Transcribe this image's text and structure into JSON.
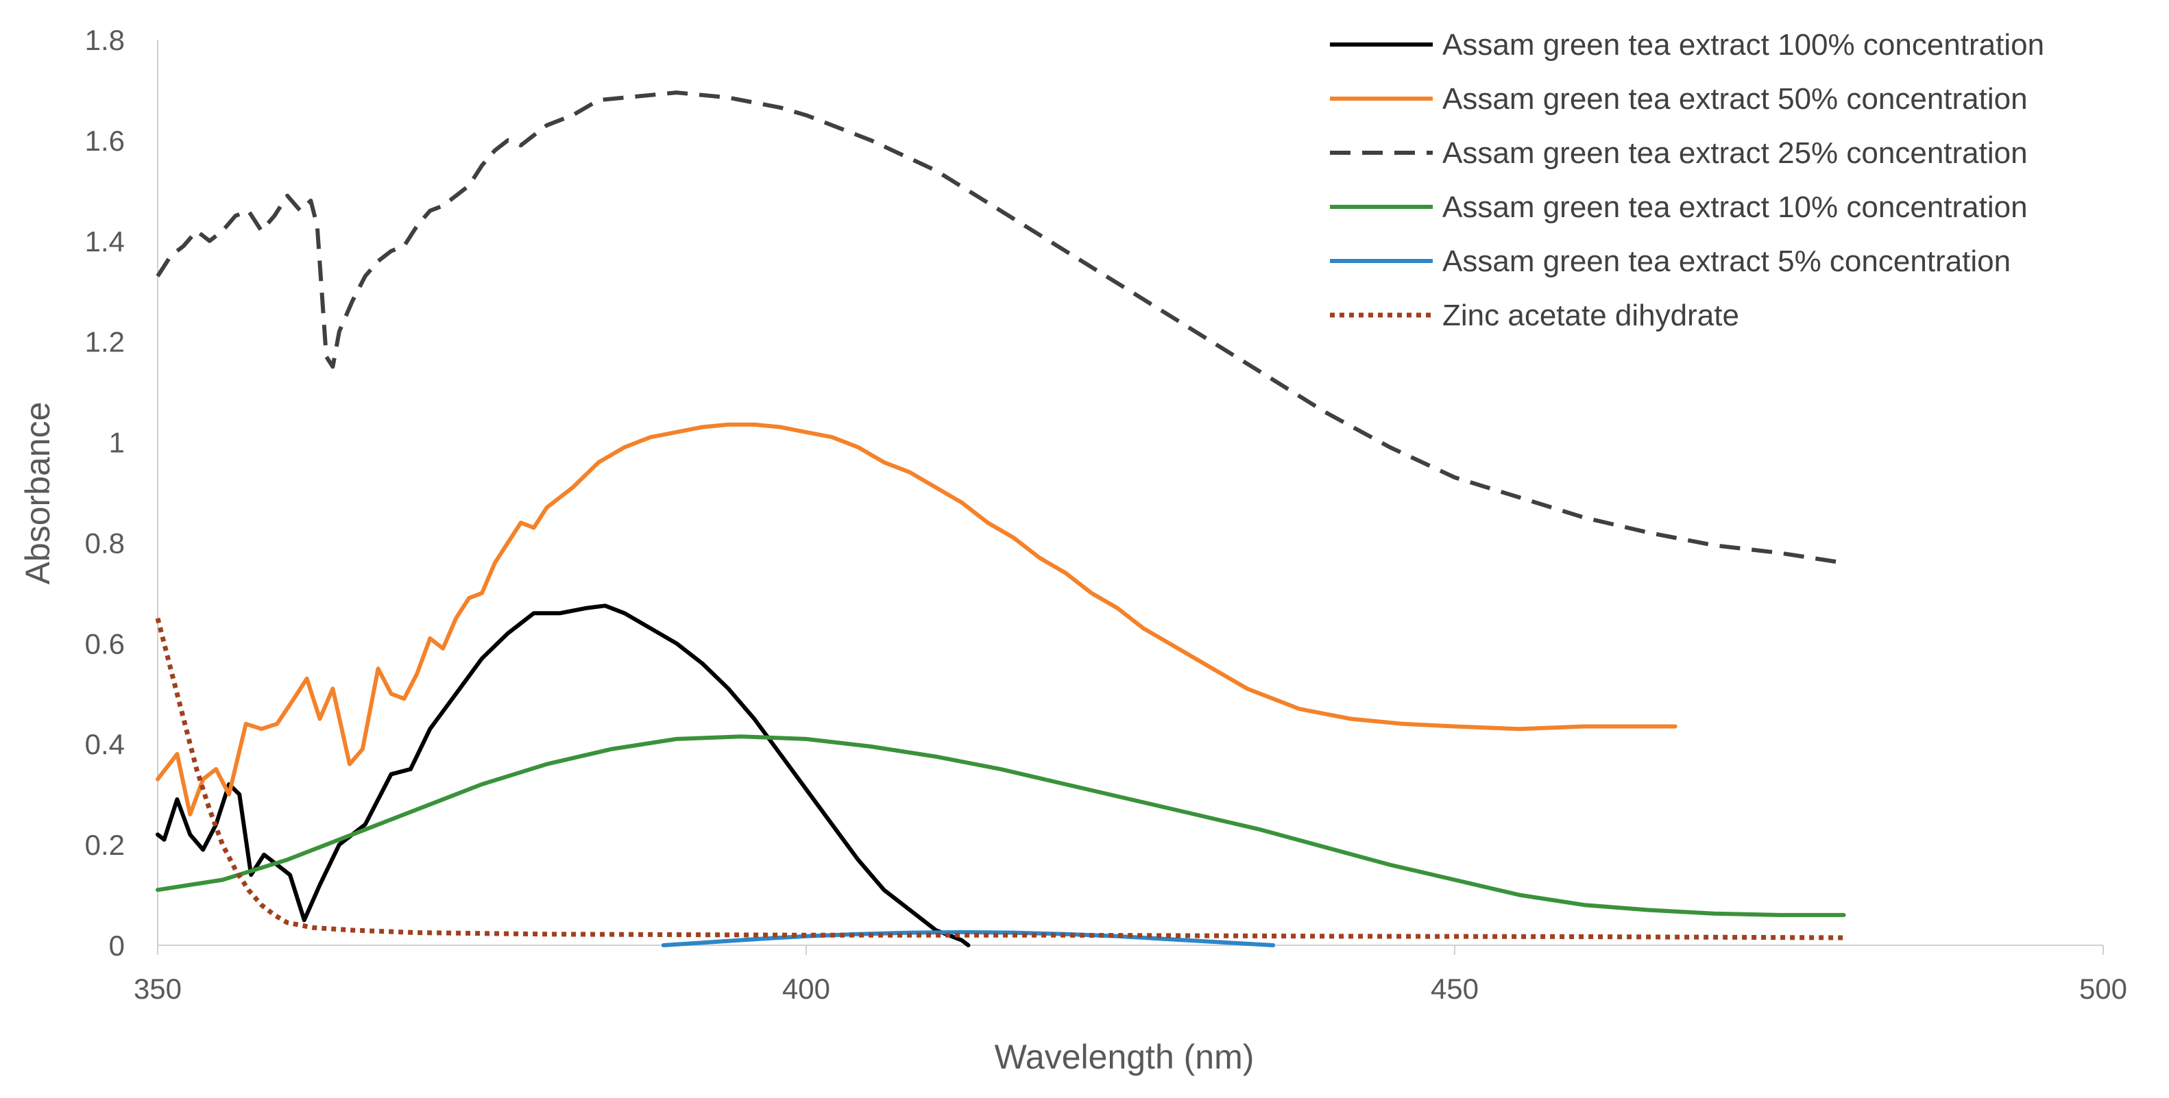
{
  "chart_data": {
    "type": "line",
    "title": "",
    "xlabel": "Wavelength (nm)",
    "ylabel": "Absorbance",
    "xlim": [
      350,
      500
    ],
    "ylim": [
      0,
      1.8
    ],
    "xticks": [
      350,
      400,
      450,
      500
    ],
    "xtick_labels": [
      "350",
      "400",
      "450",
      "500"
    ],
    "yticks": [
      0,
      0.2,
      0.4,
      0.6,
      0.8,
      1,
      1.2,
      1.4,
      1.6,
      1.8
    ],
    "ytick_labels": [
      "0",
      "0.2",
      "0.4",
      "0.6",
      "0.8",
      "1",
      "1.2",
      "1.4",
      "1.6",
      "1.8"
    ],
    "legend_position": "top-right",
    "series": [
      {
        "name": "Assam green tea extract 100% concentration",
        "color": "#000000",
        "style": "solid",
        "points": [
          [
            350,
            0.22
          ],
          [
            350.5,
            0.21
          ],
          [
            351.5,
            0.29
          ],
          [
            352.5,
            0.22
          ],
          [
            353.5,
            0.19
          ],
          [
            354.5,
            0.24
          ],
          [
            355.5,
            0.32
          ],
          [
            356.3,
            0.3
          ],
          [
            357.2,
            0.14
          ],
          [
            358.2,
            0.18
          ],
          [
            359.2,
            0.16
          ],
          [
            360.2,
            0.14
          ],
          [
            361.3,
            0.05
          ],
          [
            362.5,
            0.12
          ],
          [
            364,
            0.2
          ],
          [
            366,
            0.24
          ],
          [
            368,
            0.34
          ],
          [
            369.5,
            0.35
          ],
          [
            371,
            0.43
          ],
          [
            373,
            0.5
          ],
          [
            375,
            0.57
          ],
          [
            377,
            0.62
          ],
          [
            379,
            0.66
          ],
          [
            381,
            0.66
          ],
          [
            383,
            0.67
          ],
          [
            384.5,
            0.675
          ],
          [
            386,
            0.66
          ],
          [
            388,
            0.63
          ],
          [
            390,
            0.6
          ],
          [
            392,
            0.56
          ],
          [
            394,
            0.51
          ],
          [
            396,
            0.45
          ],
          [
            398,
            0.38
          ],
          [
            400,
            0.31
          ],
          [
            402,
            0.24
          ],
          [
            404,
            0.17
          ],
          [
            406,
            0.11
          ],
          [
            408,
            0.07
          ],
          [
            410,
            0.03
          ],
          [
            412,
            0.01
          ],
          [
            412.5,
            0.0
          ]
        ]
      },
      {
        "name": "Assam green tea extract 50% concentration",
        "color": "#F4822A",
        "style": "solid",
        "points": [
          [
            350,
            0.33
          ],
          [
            351.5,
            0.38
          ],
          [
            352.5,
            0.26
          ],
          [
            353.5,
            0.33
          ],
          [
            354.5,
            0.35
          ],
          [
            355.5,
            0.3
          ],
          [
            356.8,
            0.44
          ],
          [
            358,
            0.43
          ],
          [
            359.2,
            0.44
          ],
          [
            360.5,
            0.49
          ],
          [
            361.5,
            0.53
          ],
          [
            362.5,
            0.45
          ],
          [
            363.5,
            0.51
          ],
          [
            364.8,
            0.36
          ],
          [
            365.8,
            0.39
          ],
          [
            367,
            0.55
          ],
          [
            368,
            0.5
          ],
          [
            369,
            0.49
          ],
          [
            370,
            0.54
          ],
          [
            371,
            0.61
          ],
          [
            372,
            0.59
          ],
          [
            373,
            0.65
          ],
          [
            374,
            0.69
          ],
          [
            375,
            0.7
          ],
          [
            376,
            0.76
          ],
          [
            377,
            0.8
          ],
          [
            378,
            0.84
          ],
          [
            379,
            0.83
          ],
          [
            380,
            0.87
          ],
          [
            382,
            0.91
          ],
          [
            384,
            0.96
          ],
          [
            386,
            0.99
          ],
          [
            388,
            1.01
          ],
          [
            390,
            1.02
          ],
          [
            392,
            1.03
          ],
          [
            394,
            1.035
          ],
          [
            396,
            1.035
          ],
          [
            398,
            1.03
          ],
          [
            400,
            1.02
          ],
          [
            402,
            1.01
          ],
          [
            404,
            0.99
          ],
          [
            406,
            0.96
          ],
          [
            408,
            0.94
          ],
          [
            410,
            0.91
          ],
          [
            412,
            0.88
          ],
          [
            414,
            0.84
          ],
          [
            416,
            0.81
          ],
          [
            418,
            0.77
          ],
          [
            420,
            0.74
          ],
          [
            422,
            0.7
          ],
          [
            424,
            0.67
          ],
          [
            426,
            0.63
          ],
          [
            428,
            0.6
          ],
          [
            430,
            0.57
          ],
          [
            432,
            0.54
          ],
          [
            434,
            0.51
          ],
          [
            436,
            0.49
          ],
          [
            438,
            0.47
          ],
          [
            440,
            0.46
          ],
          [
            442,
            0.45
          ],
          [
            446,
            0.44
          ],
          [
            450,
            0.435
          ],
          [
            455,
            0.43
          ],
          [
            460,
            0.435
          ],
          [
            467,
            0.435
          ]
        ]
      },
      {
        "name": "Assam green tea extract 25% concentration",
        "color": "#404040",
        "style": "dashed",
        "points": [
          [
            350,
            1.33
          ],
          [
            351,
            1.37
          ],
          [
            352,
            1.39
          ],
          [
            353,
            1.42
          ],
          [
            354,
            1.4
          ],
          [
            355,
            1.42
          ],
          [
            356,
            1.45
          ],
          [
            357,
            1.46
          ],
          [
            358,
            1.42
          ],
          [
            359,
            1.45
          ],
          [
            360,
            1.49
          ],
          [
            361,
            1.46
          ],
          [
            361.8,
            1.48
          ],
          [
            362.3,
            1.43
          ],
          [
            363,
            1.17
          ],
          [
            363.5,
            1.15
          ],
          [
            364,
            1.22
          ],
          [
            365,
            1.28
          ],
          [
            366,
            1.33
          ],
          [
            367,
            1.36
          ],
          [
            368,
            1.38
          ],
          [
            369,
            1.39
          ],
          [
            370,
            1.43
          ],
          [
            371,
            1.46
          ],
          [
            372,
            1.47
          ],
          [
            373,
            1.49
          ],
          [
            374,
            1.51
          ],
          [
            375,
            1.55
          ],
          [
            376,
            1.58
          ],
          [
            377,
            1.6
          ],
          [
            378,
            1.59
          ],
          [
            379,
            1.61
          ],
          [
            380,
            1.63
          ],
          [
            382,
            1.65
          ],
          [
            384,
            1.68
          ],
          [
            386,
            1.685
          ],
          [
            388,
            1.69
          ],
          [
            390,
            1.695
          ],
          [
            392,
            1.69
          ],
          [
            394,
            1.685
          ],
          [
            396,
            1.675
          ],
          [
            398,
            1.665
          ],
          [
            400,
            1.65
          ],
          [
            405,
            1.6
          ],
          [
            410,
            1.54
          ],
          [
            415,
            1.46
          ],
          [
            420,
            1.38
          ],
          [
            425,
            1.3
          ],
          [
            430,
            1.22
          ],
          [
            435,
            1.14
          ],
          [
            440,
            1.06
          ],
          [
            445,
            0.99
          ],
          [
            450,
            0.93
          ],
          [
            455,
            0.89
          ],
          [
            460,
            0.85
          ],
          [
            465,
            0.82
          ],
          [
            470,
            0.795
          ],
          [
            475,
            0.78
          ],
          [
            480,
            0.76
          ]
        ]
      },
      {
        "name": "Assam green tea extract 10% concentration",
        "color": "#3A923A",
        "style": "solid",
        "points": [
          [
            350,
            0.11
          ],
          [
            355,
            0.13
          ],
          [
            360,
            0.17
          ],
          [
            365,
            0.22
          ],
          [
            370,
            0.27
          ],
          [
            375,
            0.32
          ],
          [
            380,
            0.36
          ],
          [
            385,
            0.39
          ],
          [
            390,
            0.41
          ],
          [
            395,
            0.415
          ],
          [
            400,
            0.41
          ],
          [
            405,
            0.395
          ],
          [
            410,
            0.375
          ],
          [
            415,
            0.35
          ],
          [
            420,
            0.32
          ],
          [
            425,
            0.29
          ],
          [
            430,
            0.26
          ],
          [
            435,
            0.23
          ],
          [
            440,
            0.195
          ],
          [
            445,
            0.16
          ],
          [
            450,
            0.13
          ],
          [
            455,
            0.1
          ],
          [
            460,
            0.08
          ],
          [
            465,
            0.07
          ],
          [
            470,
            0.063
          ],
          [
            475,
            0.06
          ],
          [
            480,
            0.06
          ]
        ]
      },
      {
        "name": "Assam green tea extract 5% concentration",
        "color": "#2E86C8",
        "style": "solid",
        "points": [
          [
            389,
            0.0
          ],
          [
            392,
            0.005
          ],
          [
            396,
            0.012
          ],
          [
            400,
            0.018
          ],
          [
            404,
            0.022
          ],
          [
            408,
            0.025
          ],
          [
            412,
            0.026
          ],
          [
            416,
            0.025
          ],
          [
            420,
            0.022
          ],
          [
            424,
            0.018
          ],
          [
            428,
            0.012
          ],
          [
            432,
            0.006
          ],
          [
            436,
            0.0
          ]
        ]
      },
      {
        "name": "Zinc acetate dihydrate",
        "color": "#A0401E",
        "style": "dotted",
        "points": [
          [
            350,
            0.65
          ],
          [
            351,
            0.55
          ],
          [
            352,
            0.45
          ],
          [
            353,
            0.35
          ],
          [
            354,
            0.27
          ],
          [
            355,
            0.2
          ],
          [
            356,
            0.15
          ],
          [
            357,
            0.11
          ],
          [
            358,
            0.08
          ],
          [
            359,
            0.06
          ],
          [
            360,
            0.045
          ],
          [
            362,
            0.035
          ],
          [
            365,
            0.03
          ],
          [
            370,
            0.025
          ],
          [
            380,
            0.022
          ],
          [
            400,
            0.02
          ],
          [
            420,
            0.02
          ],
          [
            440,
            0.018
          ],
          [
            460,
            0.017
          ],
          [
            480,
            0.015
          ]
        ]
      }
    ]
  }
}
